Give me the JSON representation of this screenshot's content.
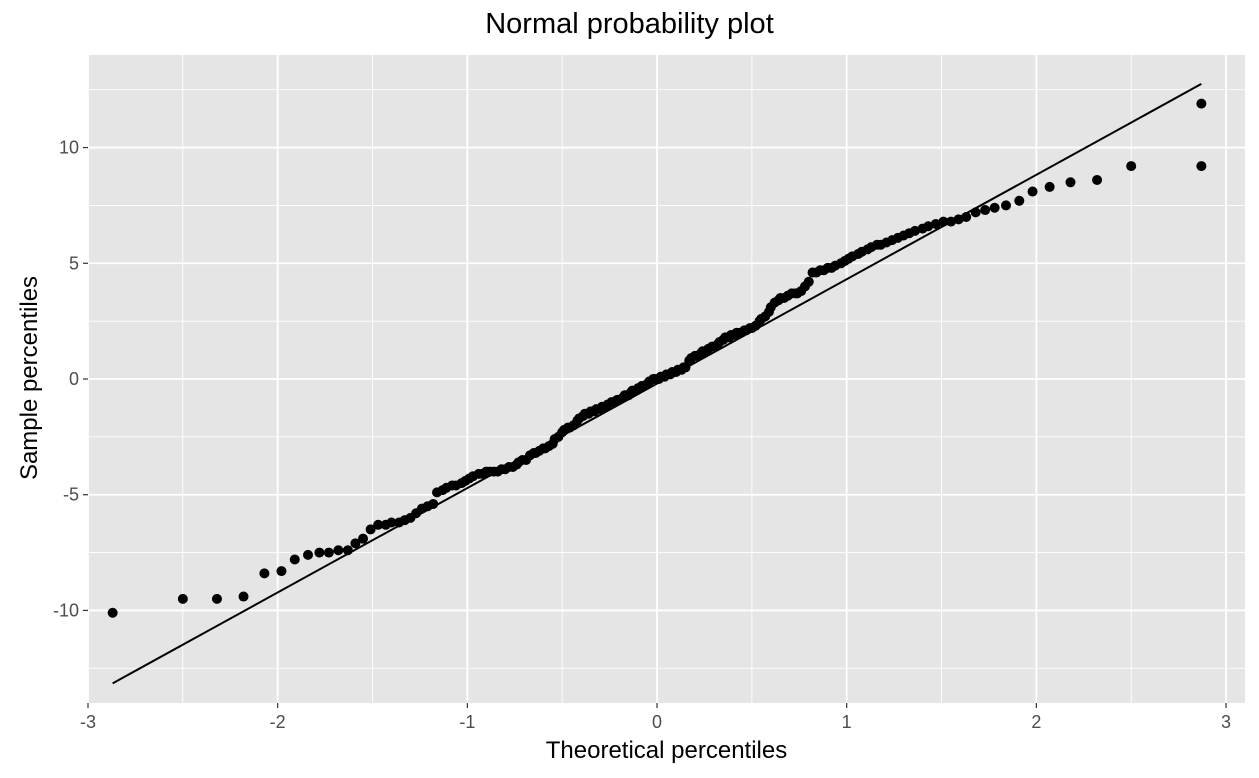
{
  "chart_data": {
    "type": "scatter",
    "title": "Normal probability plot",
    "xlabel": "Theoretical percentiles",
    "ylabel": "Sample percentiles",
    "xlim": [
      -3.0,
      3.1
    ],
    "ylim": [
      -14.0,
      14.0
    ],
    "x_ticks": [
      -3,
      -2,
      -1,
      0,
      1,
      2,
      3
    ],
    "y_ticks": [
      -10,
      -5,
      0,
      5,
      10
    ],
    "x_tick_labels": [
      "-3",
      "-2",
      "-1",
      "0",
      "1",
      "2",
      "3"
    ],
    "y_tick_labels": [
      "-10",
      "-5",
      "0",
      "5",
      "10"
    ],
    "grid": true,
    "panel_background": "#e5e5e5",
    "grid_color": "#ffffff",
    "point_color": "#000000",
    "reference_line": {
      "x": [
        -2.87,
        2.87
      ],
      "y": [
        -13.15,
        12.75
      ],
      "color": "#000000"
    },
    "series": [
      {
        "points": [
          [
            -2.87,
            -10.1
          ],
          [
            -2.5,
            -9.5
          ],
          [
            -2.32,
            -9.5
          ],
          [
            -2.18,
            -9.4
          ],
          [
            -2.07,
            -8.4
          ],
          [
            -1.98,
            -8.3
          ],
          [
            -1.91,
            -7.8
          ],
          [
            -1.84,
            -7.6
          ],
          [
            -1.78,
            -7.5
          ],
          [
            -1.73,
            -7.5
          ],
          [
            -1.68,
            -7.4
          ],
          [
            -1.63,
            -7.4
          ],
          [
            -1.59,
            -7.1
          ],
          [
            -1.55,
            -6.9
          ],
          [
            -1.51,
            -6.5
          ],
          [
            -1.47,
            -6.3
          ],
          [
            -1.43,
            -6.3
          ],
          [
            -1.4,
            -6.2
          ],
          [
            -1.36,
            -6.2
          ],
          [
            -1.33,
            -6.1
          ],
          [
            -1.3,
            -6.0
          ],
          [
            -1.27,
            -5.8
          ],
          [
            -1.24,
            -5.6
          ],
          [
            -1.21,
            -5.5
          ],
          [
            -1.18,
            -5.4
          ],
          [
            -1.16,
            -4.9
          ],
          [
            -1.13,
            -4.8
          ],
          [
            -1.11,
            -4.7
          ],
          [
            -1.08,
            -4.6
          ],
          [
            -1.06,
            -4.6
          ],
          [
            -1.03,
            -4.5
          ],
          [
            -1.01,
            -4.4
          ],
          [
            -0.99,
            -4.3
          ],
          [
            -0.97,
            -4.2
          ],
          [
            -0.94,
            -4.1
          ],
          [
            -0.92,
            -4.1
          ],
          [
            -0.9,
            -4.0
          ],
          [
            -0.88,
            -4.0
          ],
          [
            -0.86,
            -4.0
          ],
          [
            -0.84,
            -4.0
          ],
          [
            -0.82,
            -3.9
          ],
          [
            -0.8,
            -3.9
          ],
          [
            -0.78,
            -3.8
          ],
          [
            -0.76,
            -3.8
          ],
          [
            -0.74,
            -3.7
          ],
          [
            -0.73,
            -3.6
          ],
          [
            -0.71,
            -3.5
          ],
          [
            -0.69,
            -3.5
          ],
          [
            -0.67,
            -3.3
          ],
          [
            -0.65,
            -3.2
          ],
          [
            -0.64,
            -3.2
          ],
          [
            -0.62,
            -3.1
          ],
          [
            -0.6,
            -3.0
          ],
          [
            -0.59,
            -3.0
          ],
          [
            -0.57,
            -2.9
          ],
          [
            -0.55,
            -2.8
          ],
          [
            -0.54,
            -2.6
          ],
          [
            -0.52,
            -2.5
          ],
          [
            -0.5,
            -2.3
          ],
          [
            -0.49,
            -2.2
          ],
          [
            -0.47,
            -2.1
          ],
          [
            -0.46,
            -2.1
          ],
          [
            -0.44,
            -2.0
          ],
          [
            -0.42,
            -1.8
          ],
          [
            -0.41,
            -1.7
          ],
          [
            -0.39,
            -1.6
          ],
          [
            -0.38,
            -1.5
          ],
          [
            -0.36,
            -1.5
          ],
          [
            -0.35,
            -1.4
          ],
          [
            -0.33,
            -1.4
          ],
          [
            -0.32,
            -1.3
          ],
          [
            -0.3,
            -1.3
          ],
          [
            -0.29,
            -1.2
          ],
          [
            -0.27,
            -1.2
          ],
          [
            -0.26,
            -1.1
          ],
          [
            -0.24,
            -1.0
          ],
          [
            -0.23,
            -1.0
          ],
          [
            -0.21,
            -0.9
          ],
          [
            -0.2,
            -0.9
          ],
          [
            -0.18,
            -0.8
          ],
          [
            -0.17,
            -0.7
          ],
          [
            -0.15,
            -0.7
          ],
          [
            -0.14,
            -0.6
          ],
          [
            -0.13,
            -0.5
          ],
          [
            -0.11,
            -0.5
          ],
          [
            -0.1,
            -0.4
          ],
          [
            -0.08,
            -0.3
          ],
          [
            -0.07,
            -0.3
          ],
          [
            -0.05,
            -0.2
          ],
          [
            -0.04,
            -0.1
          ],
          [
            -0.02,
            -0.0
          ],
          [
            -0.01,
            -0.0
          ],
          [
            0.01,
            0.0
          ],
          [
            0.02,
            0.1
          ],
          [
            0.04,
            0.1
          ],
          [
            0.05,
            0.2
          ],
          [
            0.07,
            0.2
          ],
          [
            0.08,
            0.3
          ],
          [
            0.1,
            0.3
          ],
          [
            0.11,
            0.4
          ],
          [
            0.13,
            0.4
          ],
          [
            0.14,
            0.5
          ],
          [
            0.15,
            0.5
          ],
          [
            0.17,
            0.8
          ],
          [
            0.18,
            0.9
          ],
          [
            0.2,
            1.0
          ],
          [
            0.21,
            1.0
          ],
          [
            0.23,
            1.1
          ],
          [
            0.24,
            1.2
          ],
          [
            0.26,
            1.2
          ],
          [
            0.27,
            1.3
          ],
          [
            0.29,
            1.4
          ],
          [
            0.3,
            1.4
          ],
          [
            0.32,
            1.5
          ],
          [
            0.33,
            1.6
          ],
          [
            0.35,
            1.7
          ],
          [
            0.36,
            1.8
          ],
          [
            0.38,
            1.8
          ],
          [
            0.39,
            1.9
          ],
          [
            0.41,
            1.9
          ],
          [
            0.42,
            2.0
          ],
          [
            0.44,
            2.0
          ],
          [
            0.46,
            2.1
          ],
          [
            0.47,
            2.1
          ],
          [
            0.49,
            2.2
          ],
          [
            0.5,
            2.2
          ],
          [
            0.52,
            2.3
          ],
          [
            0.54,
            2.5
          ],
          [
            0.55,
            2.6
          ],
          [
            0.57,
            2.7
          ],
          [
            0.59,
            2.9
          ],
          [
            0.6,
            3.1
          ],
          [
            0.62,
            3.3
          ],
          [
            0.64,
            3.4
          ],
          [
            0.65,
            3.5
          ],
          [
            0.67,
            3.5
          ],
          [
            0.69,
            3.6
          ],
          [
            0.71,
            3.7
          ],
          [
            0.73,
            3.7
          ],
          [
            0.74,
            3.7
          ],
          [
            0.76,
            3.8
          ],
          [
            0.78,
            4.0
          ],
          [
            0.8,
            4.2
          ],
          [
            0.82,
            4.6
          ],
          [
            0.84,
            4.6
          ],
          [
            0.86,
            4.7
          ],
          [
            0.88,
            4.7
          ],
          [
            0.9,
            4.8
          ],
          [
            0.92,
            4.8
          ],
          [
            0.94,
            4.9
          ],
          [
            0.97,
            5.0
          ],
          [
            0.99,
            5.1
          ],
          [
            1.01,
            5.2
          ],
          [
            1.03,
            5.3
          ],
          [
            1.06,
            5.4
          ],
          [
            1.08,
            5.5
          ],
          [
            1.11,
            5.6
          ],
          [
            1.13,
            5.7
          ],
          [
            1.16,
            5.8
          ],
          [
            1.18,
            5.8
          ],
          [
            1.21,
            5.9
          ],
          [
            1.24,
            6.0
          ],
          [
            1.27,
            6.1
          ],
          [
            1.3,
            6.2
          ],
          [
            1.33,
            6.3
          ],
          [
            1.36,
            6.4
          ],
          [
            1.4,
            6.5
          ],
          [
            1.43,
            6.6
          ],
          [
            1.47,
            6.7
          ],
          [
            1.51,
            6.8
          ],
          [
            1.55,
            6.8
          ],
          [
            1.59,
            6.9
          ],
          [
            1.63,
            7.0
          ],
          [
            1.68,
            7.2
          ],
          [
            1.73,
            7.3
          ],
          [
            1.78,
            7.4
          ],
          [
            1.84,
            7.5
          ],
          [
            1.91,
            7.7
          ],
          [
            1.98,
            8.1
          ],
          [
            2.07,
            8.3
          ],
          [
            2.18,
            8.5
          ],
          [
            2.32,
            8.6
          ],
          [
            2.5,
            9.2
          ],
          [
            2.87,
            9.2
          ],
          [
            2.87,
            11.9
          ]
        ]
      }
    ]
  }
}
